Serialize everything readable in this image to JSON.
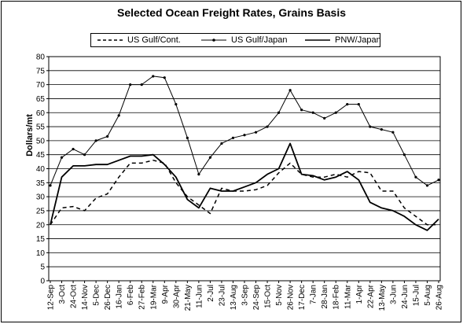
{
  "chart_data": {
    "type": "line",
    "title": "Selected Ocean Freight Rates, Grains Basis",
    "ylabel": "Dollars/mt",
    "xlabel": "",
    "ylim": [
      0,
      80
    ],
    "yticks": [
      0,
      5,
      10,
      15,
      20,
      25,
      30,
      35,
      40,
      45,
      50,
      55,
      60,
      65,
      70,
      75,
      80
    ],
    "grid": "horizontal",
    "legend_position": "top",
    "categories": [
      "12-Sep",
      "3-Oct",
      "24-Oct",
      "14-Nov",
      "5-Dec",
      "26-Dec",
      "16-Jan",
      "6-Feb",
      "27-Feb",
      "19-Mar",
      "9-Apr",
      "30-Apr",
      "21-May",
      "11-Jun",
      "2-Jul",
      "23-Jul",
      "13-Aug",
      "3-Sep",
      "24-Sep",
      "15-Oct",
      "5-Nov",
      "26-Nov",
      "17-Dec",
      "7-Jan",
      "28-Jan",
      "18-Feb",
      "11-Mar",
      "1-Apr",
      "22-Apr",
      "13-May",
      "3-Jun",
      "24-Jun",
      "15-Jul",
      "5-Aug",
      "26-Aug"
    ],
    "series": [
      {
        "name": "US Gulf/Cont.",
        "style": "dashed",
        "color": "#000000",
        "values": [
          20,
          26,
          26.5,
          25,
          29.5,
          31,
          37,
          42,
          42,
          43,
          42,
          35,
          30,
          27,
          24,
          33,
          32,
          32,
          32.5,
          34,
          38.5,
          42,
          38,
          37,
          37,
          38,
          37,
          39,
          38.5,
          32,
          32,
          26,
          23,
          20,
          20
        ]
      },
      {
        "name": "US Gulf/Japan",
        "style": "solid-with-markers",
        "color": "#000000",
        "values": [
          34,
          44,
          47,
          45,
          50,
          51.5,
          59,
          70,
          70,
          73,
          72.5,
          63,
          51,
          38,
          44,
          49,
          51,
          52,
          53,
          55,
          60,
          68,
          61,
          60,
          58,
          60,
          63,
          63,
          55,
          54,
          53,
          45,
          37,
          34,
          36
        ]
      },
      {
        "name": "PNW/Japan",
        "style": "solid",
        "color": "#000000",
        "values": [
          20,
          37,
          41,
          41,
          41.5,
          41.5,
          43,
          44.5,
          44.5,
          45,
          41.5,
          37,
          29,
          26,
          33,
          32,
          32,
          33.5,
          35,
          38,
          40,
          49,
          38,
          37.5,
          36,
          37,
          39,
          36,
          28,
          26,
          25,
          23,
          20,
          18,
          22
        ]
      }
    ]
  }
}
